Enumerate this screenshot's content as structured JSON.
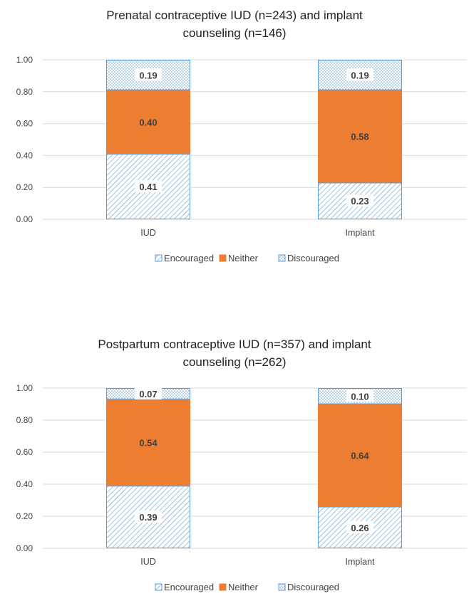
{
  "colors": {
    "encouraged": "#5b9bd5",
    "neither": "#ed7d31",
    "discouraged": "#5b9bd5",
    "grid": "#d9d9d9"
  },
  "legend": {
    "items": [
      "Encouraged",
      "Neither",
      "Discouraged"
    ],
    "placement": "bottom"
  },
  "chart_data": [
    {
      "type": "bar",
      "stacked": true,
      "title_lines": [
        "Prenatal contraceptive IUD (n=243) and implant",
        "counseling (n=146)"
      ],
      "categories": [
        "IUD",
        "Implant"
      ],
      "series": [
        {
          "name": "Encouraged",
          "values": [
            0.41,
            0.23
          ],
          "labels": [
            "0.41",
            "0.23"
          ]
        },
        {
          "name": "Neither",
          "values": [
            0.4,
            0.58
          ],
          "labels": [
            "0.40",
            "0.58"
          ]
        },
        {
          "name": "Discouraged",
          "values": [
            0.19,
            0.19
          ],
          "labels": [
            "0.19",
            "0.19"
          ]
        }
      ],
      "ylim": [
        0,
        1
      ],
      "yticks": [
        "0.00",
        "0.20",
        "0.40",
        "0.60",
        "0.80",
        "1.00"
      ],
      "grid": true
    },
    {
      "type": "bar",
      "stacked": true,
      "title_lines": [
        "Postpartum contraceptive IUD (n=357) and implant",
        "counseling (n=262)"
      ],
      "categories": [
        "IUD",
        "Implant"
      ],
      "series": [
        {
          "name": "Encouraged",
          "values": [
            0.39,
            0.26
          ],
          "labels": [
            "0.39",
            "0.26"
          ]
        },
        {
          "name": "Neither",
          "values": [
            0.54,
            0.64
          ],
          "labels": [
            "0.54",
            "0.64"
          ]
        },
        {
          "name": "Discouraged",
          "values": [
            0.07,
            0.1
          ],
          "labels": [
            "0.07",
            "0.10"
          ]
        }
      ],
      "ylim": [
        0,
        1
      ],
      "yticks": [
        "0.00",
        "0.20",
        "0.40",
        "0.60",
        "0.80",
        "1.00"
      ],
      "grid": true
    }
  ]
}
